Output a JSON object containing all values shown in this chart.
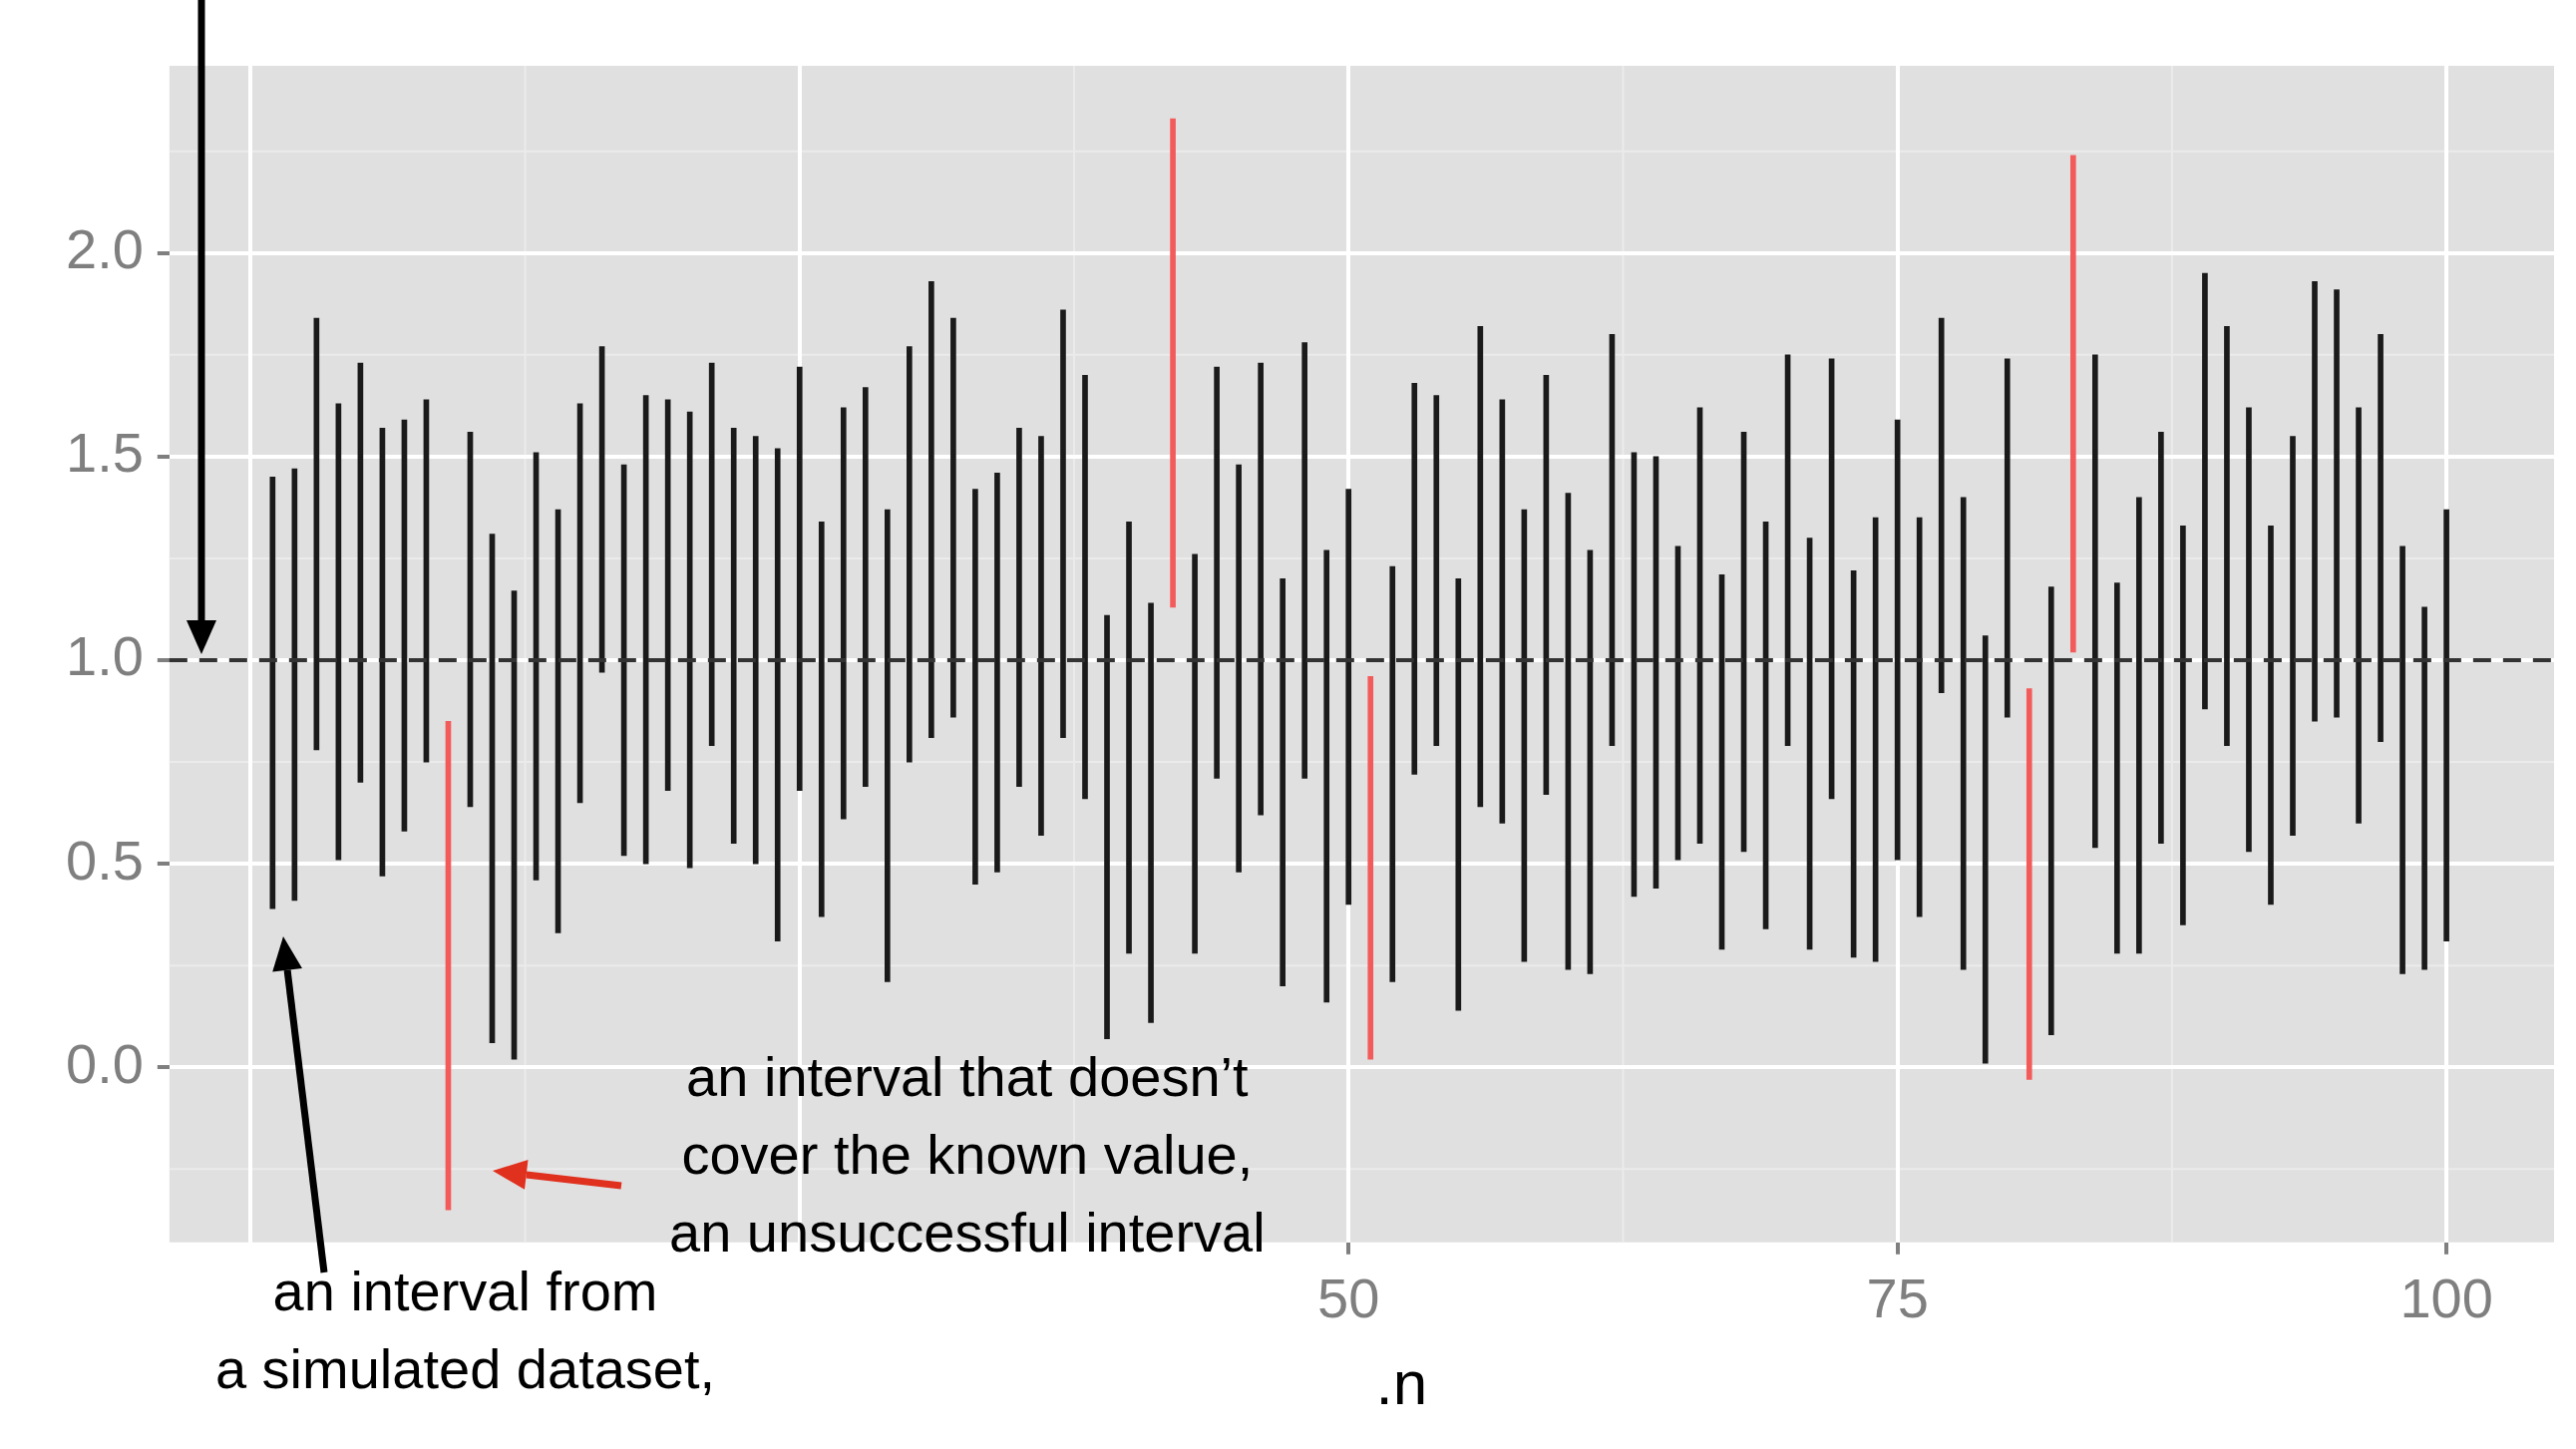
{
  "chart_data": {
    "type": "bar",
    "xlabel": ".n",
    "x": [
      1,
      2,
      3,
      4,
      5,
      6,
      7,
      8,
      9,
      10,
      11,
      12,
      13,
      14,
      15,
      16,
      17,
      18,
      19,
      20,
      21,
      22,
      23,
      24,
      25,
      26,
      27,
      28,
      29,
      30,
      31,
      32,
      33,
      34,
      35,
      36,
      37,
      38,
      39,
      40,
      41,
      42,
      43,
      44,
      45,
      46,
      47,
      48,
      49,
      50,
      51,
      52,
      53,
      54,
      55,
      56,
      57,
      58,
      59,
      60,
      61,
      62,
      63,
      64,
      65,
      66,
      67,
      68,
      69,
      70,
      71,
      72,
      73,
      74,
      75,
      76,
      77,
      78,
      79,
      80,
      81,
      82,
      83,
      84,
      85,
      86,
      87,
      88,
      89,
      90,
      91,
      92,
      93,
      94,
      95,
      96,
      97,
      98,
      99,
      100
    ],
    "base": [
      0.39,
      0.41,
      0.78,
      0.51,
      0.7,
      0.47,
      0.58,
      0.75,
      -0.35,
      0.64,
      0.06,
      0.02,
      0.46,
      0.33,
      0.65,
      0.97,
      0.52,
      0.5,
      0.68,
      0.49,
      0.79,
      0.55,
      0.5,
      0.31,
      0.68,
      0.37,
      0.61,
      0.69,
      0.21,
      0.75,
      0.81,
      0.86,
      0.45,
      0.48,
      0.69,
      0.57,
      0.81,
      0.66,
      0.07,
      0.28,
      0.11,
      1.13,
      0.28,
      0.71,
      0.48,
      0.62,
      0.2,
      0.71,
      0.16,
      0.4,
      0.02,
      0.21,
      0.72,
      0.79,
      0.14,
      0.64,
      0.6,
      0.26,
      0.67,
      0.24,
      0.23,
      0.79,
      0.42,
      0.44,
      0.51,
      0.55,
      0.29,
      0.53,
      0.34,
      0.79,
      0.29,
      0.66,
      0.27,
      0.26,
      0.51,
      0.37,
      0.92,
      0.24,
      0.01,
      0.86,
      -0.03,
      0.08,
      1.02,
      0.54,
      0.28,
      0.28,
      0.55,
      0.35,
      0.88,
      0.79,
      0.53,
      0.4,
      0.57,
      0.85,
      0.86,
      0.6,
      0.8,
      0.23,
      0.24,
      0.31
    ],
    "values": [
      1.06,
      1.06,
      1.06,
      1.12,
      1.03,
      1.1,
      1.01,
      0.89,
      1.2,
      0.92,
      1.25,
      1.15,
      1.05,
      1.04,
      0.98,
      0.8,
      0.96,
      1.15,
      0.96,
      1.12,
      0.94,
      1.02,
      1.05,
      1.21,
      1.04,
      0.97,
      1.01,
      0.98,
      1.16,
      1.02,
      1.12,
      0.98,
      0.97,
      0.98,
      0.88,
      0.98,
      1.05,
      1.04,
      1.04,
      1.06,
      1.03,
      1.2,
      0.98,
      1.01,
      1.0,
      1.11,
      1.0,
      1.07,
      1.11,
      1.02,
      0.94,
      1.02,
      0.96,
      0.86,
      1.06,
      1.18,
      1.04,
      1.11,
      1.03,
      1.17,
      1.04,
      1.01,
      1.09,
      1.06,
      0.77,
      1.07,
      0.92,
      1.03,
      1.0,
      0.96,
      1.01,
      1.08,
      0.95,
      1.09,
      1.08,
      0.98,
      0.92,
      1.16,
      1.05,
      0.88,
      0.96,
      1.1,
      1.22,
      1.21,
      0.91,
      1.12,
      1.01,
      0.98,
      1.07,
      1.03,
      1.09,
      0.93,
      0.98,
      1.08,
      1.05,
      1.02,
      1.0,
      1.05,
      0.89,
      1.06
    ],
    "colors": [
      "#1a1a1a",
      "#1a1a1a",
      "#1a1a1a",
      "#1a1a1a",
      "#1a1a1a",
      "#1a1a1a",
      "#1a1a1a",
      "#1a1a1a",
      "#f35b5b",
      "#1a1a1a",
      "#1a1a1a",
      "#1a1a1a",
      "#1a1a1a",
      "#1a1a1a",
      "#1a1a1a",
      "#1a1a1a",
      "#1a1a1a",
      "#1a1a1a",
      "#1a1a1a",
      "#1a1a1a",
      "#1a1a1a",
      "#1a1a1a",
      "#1a1a1a",
      "#1a1a1a",
      "#1a1a1a",
      "#1a1a1a",
      "#1a1a1a",
      "#1a1a1a",
      "#1a1a1a",
      "#1a1a1a",
      "#1a1a1a",
      "#1a1a1a",
      "#1a1a1a",
      "#1a1a1a",
      "#1a1a1a",
      "#1a1a1a",
      "#1a1a1a",
      "#1a1a1a",
      "#1a1a1a",
      "#1a1a1a",
      "#1a1a1a",
      "#f35b5b",
      "#1a1a1a",
      "#1a1a1a",
      "#1a1a1a",
      "#1a1a1a",
      "#1a1a1a",
      "#1a1a1a",
      "#1a1a1a",
      "#1a1a1a",
      "#f35b5b",
      "#1a1a1a",
      "#1a1a1a",
      "#1a1a1a",
      "#1a1a1a",
      "#1a1a1a",
      "#1a1a1a",
      "#1a1a1a",
      "#1a1a1a",
      "#1a1a1a",
      "#1a1a1a",
      "#1a1a1a",
      "#1a1a1a",
      "#1a1a1a",
      "#1a1a1a",
      "#1a1a1a",
      "#1a1a1a",
      "#1a1a1a",
      "#1a1a1a",
      "#1a1a1a",
      "#1a1a1a",
      "#1a1a1a",
      "#1a1a1a",
      "#1a1a1a",
      "#1a1a1a",
      "#1a1a1a",
      "#1a1a1a",
      "#1a1a1a",
      "#1a1a1a",
      "#1a1a1a",
      "#f35b5b",
      "#1a1a1a",
      "#f35b5b",
      "#1a1a1a",
      "#1a1a1a",
      "#1a1a1a",
      "#1a1a1a",
      "#1a1a1a",
      "#1a1a1a",
      "#1a1a1a",
      "#1a1a1a",
      "#1a1a1a",
      "#1a1a1a",
      "#1a1a1a",
      "#1a1a1a",
      "#1a1a1a",
      "#1a1a1a",
      "#1a1a1a",
      "#1a1a1a",
      "#1a1a1a"
    ],
    "xlim": [
      -3.7,
      104.9
    ],
    "xticks": [
      {
        "value": 0,
        "label": null
      },
      {
        "value": 25,
        "label": null
      },
      50,
      75,
      100
    ],
    "ylim": [
      -0.43,
      2.46
    ],
    "yticks": [
      {
        "value": 0,
        "label": "0.0"
      },
      {
        "value": 0.5,
        "label": "0.5"
      },
      {
        "value": 1,
        "label": "1.0"
      },
      {
        "value": 1.5,
        "label": "1.5"
      },
      {
        "value": 2,
        "label": "2.0"
      }
    ],
    "ref_lines": [
      {
        "axis": "y",
        "value": 1,
        "label": null,
        "color": "#333333",
        "line_style": "dashed"
      }
    ],
    "grid": true,
    "annotations": [
      "an interval that doesn’t\ncover the known value,\nan unsuccessful interval",
      "an interval from\na simulated dataset,"
    ]
  }
}
